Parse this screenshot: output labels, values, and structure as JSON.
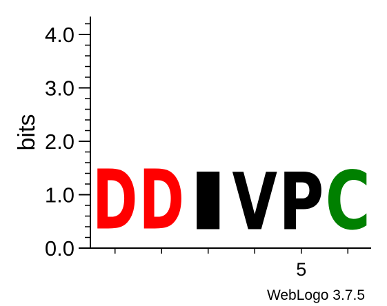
{
  "chart_data": {
    "type": "sequence-logo",
    "ylabel": "bits",
    "ylim": [
      0,
      4.3
    ],
    "y_ticks": [
      {
        "value": 0,
        "label": "0.0"
      },
      {
        "value": 1,
        "label": "1.0"
      },
      {
        "value": 2,
        "label": "2.0"
      },
      {
        "value": 3,
        "label": "3.0"
      },
      {
        "value": 4,
        "label": "4.0"
      }
    ],
    "x_tick_labels": [
      {
        "position": 5,
        "label": "5"
      }
    ],
    "positions": [
      {
        "position": 1,
        "letter": "D",
        "bits": 1.8
      },
      {
        "position": 2,
        "letter": "D",
        "bits": 1.8
      },
      {
        "position": 3,
        "letter": "I",
        "bits": 1.73
      },
      {
        "position": 4,
        "letter": "V",
        "bits": 1.73
      },
      {
        "position": 5,
        "letter": "P",
        "bits": 1.73
      },
      {
        "position": 6,
        "letter": "C",
        "bits": 1.77
      }
    ],
    "letter_colors": {
      "D": "#ff0000",
      "I": "#000000",
      "V": "#000000",
      "P": "#000000",
      "C": "#008000"
    },
    "credit": "WebLogo 3.7.5"
  }
}
